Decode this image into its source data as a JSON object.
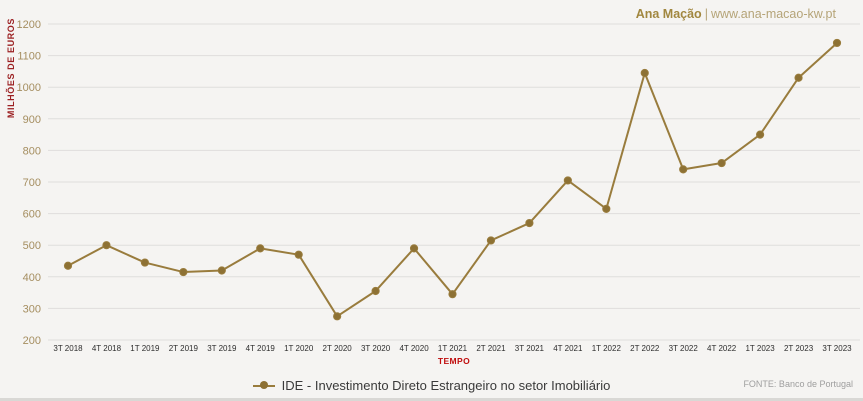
{
  "header": {
    "brand": "Ana Mação",
    "separator": "|",
    "url": "www.ana-macao-kw.pt"
  },
  "legend": {
    "label": "IDE - Investimento Direto Estrangeiro no setor Imobiliário"
  },
  "footer": {
    "source": "FONTE: Banco de Portugal"
  },
  "axes": {
    "y_title": "MILHÕES DE EUROS",
    "x_title": "TEMPO"
  },
  "colors": {
    "background": "#f5f4f2",
    "grid": "#dfdedc",
    "line": "#997c3d",
    "point_fill": "#8d7134",
    "y_tick_text": "#a58e60",
    "x_tick_text": "#2d2d2d",
    "y_title_text": "#9c2123",
    "x_title_text": "#c00d0d"
  },
  "chart_data": {
    "type": "line",
    "title": "",
    "series_name": "IDE - Investimento Direto Estrangeiro no setor Imobiliário",
    "xlabel": "TEMPO",
    "ylabel": "MILHÕES DE EUROS",
    "categories": [
      "3T 2018",
      "4T 2018",
      "1T 2019",
      "2T 2019",
      "3T 2019",
      "4T 2019",
      "1T 2020",
      "2T 2020",
      "3T 2020",
      "4T 2020",
      "1T 2021",
      "2T 2021",
      "3T 2021",
      "4T 2021",
      "1T 2022",
      "2T 2022",
      "3T 2022",
      "4T 2022",
      "1T 2023",
      "2T 2023",
      "3T 2023"
    ],
    "values": [
      435,
      500,
      445,
      415,
      420,
      490,
      470,
      275,
      355,
      490,
      345,
      515,
      570,
      705,
      615,
      1045,
      740,
      760,
      850,
      1030,
      1140
    ],
    "ylim": [
      200,
      1200
    ],
    "yticks": [
      200,
      300,
      400,
      500,
      600,
      700,
      800,
      900,
      1000,
      1100,
      1200
    ],
    "grid": true,
    "legend_position": "bottom",
    "source": "FONTE: Banco de Portugal"
  }
}
